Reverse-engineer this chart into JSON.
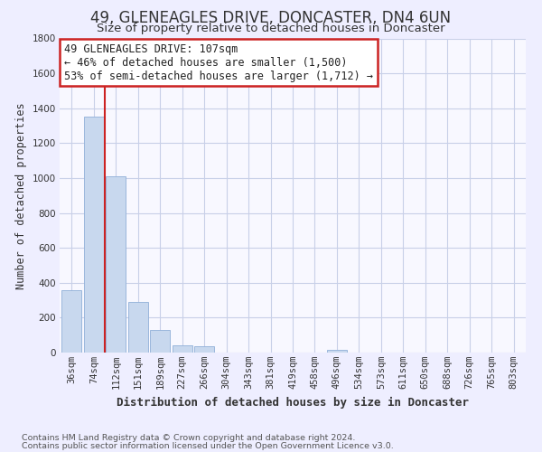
{
  "title": "49, GLENEAGLES DRIVE, DONCASTER, DN4 6UN",
  "subtitle": "Size of property relative to detached houses in Doncaster",
  "xlabel": "Distribution of detached houses by size in Doncaster",
  "ylabel": "Number of detached properties",
  "footnote1": "Contains HM Land Registry data © Crown copyright and database right 2024.",
  "footnote2": "Contains public sector information licensed under the Open Government Licence v3.0.",
  "bar_labels": [
    "36sqm",
    "74sqm",
    "112sqm",
    "151sqm",
    "189sqm",
    "227sqm",
    "266sqm",
    "304sqm",
    "343sqm",
    "381sqm",
    "419sqm",
    "458sqm",
    "496sqm",
    "534sqm",
    "573sqm",
    "611sqm",
    "650sqm",
    "688sqm",
    "726sqm",
    "765sqm",
    "803sqm"
  ],
  "bar_values": [
    355,
    1350,
    1010,
    290,
    130,
    42,
    35,
    0,
    0,
    0,
    0,
    0,
    18,
    0,
    0,
    0,
    0,
    0,
    0,
    0,
    0
  ],
  "bar_color": "#c8d8ee",
  "bar_edge_color": "#90b0d8",
  "vline_x": 1.5,
  "vline_color": "#cc2222",
  "annotation_line1": "49 GLENEAGLES DRIVE: 107sqm",
  "annotation_line2": "← 46% of detached houses are smaller (1,500)",
  "annotation_line3": "53% of semi-detached houses are larger (1,712) →",
  "ylim": [
    0,
    1800
  ],
  "yticks": [
    0,
    200,
    400,
    600,
    800,
    1000,
    1200,
    1400,
    1600,
    1800
  ],
  "background_color": "#eeeeff",
  "plot_bg_color": "#f8f8ff",
  "grid_color": "#c8d0e8",
  "title_fontsize": 12,
  "subtitle_fontsize": 9.5,
  "xlabel_fontsize": 9,
  "ylabel_fontsize": 8.5,
  "tick_fontsize": 7.5,
  "annotation_fontsize": 8.5,
  "footnote_fontsize": 6.8
}
